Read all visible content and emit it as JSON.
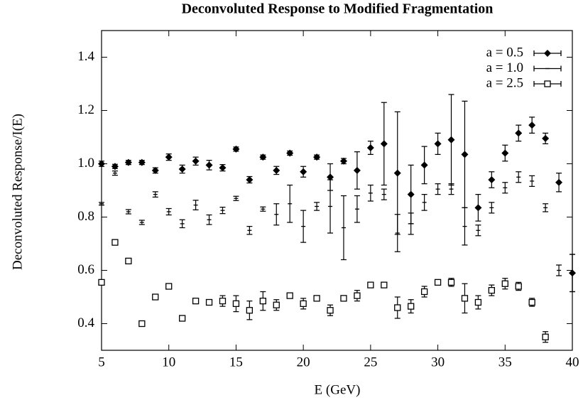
{
  "chart_data": {
    "type": "errorbar-scatter",
    "title": "Deconvoluted Response to Modified Fragmentation",
    "xlabel": "E (GeV)",
    "ylabel": "Deconvoluted Response/I(E)",
    "xlim": [
      5,
      40
    ],
    "ylim": [
      0.3,
      1.5
    ],
    "xticks": [
      5,
      10,
      15,
      20,
      25,
      30,
      35,
      40
    ],
    "yticks": [
      0.4,
      0.6,
      0.8,
      {
        "value": 1.0,
        "label": "1.0"
      },
      1.2,
      1.4
    ],
    "legend": "upper right",
    "series": [
      {
        "name": "a = 0.5",
        "color": "#000000",
        "marker": "diamond",
        "x": [
          5,
          6,
          7,
          8,
          9,
          10,
          11,
          12,
          13,
          14,
          15,
          16,
          17,
          18,
          19,
          20,
          21,
          22,
          23,
          24,
          25,
          26,
          27,
          28,
          29,
          30,
          31,
          32,
          33,
          34,
          35,
          36,
          37,
          38,
          39,
          40
        ],
        "values": [
          1.0,
          0.99,
          1.005,
          1.005,
          0.975,
          1.025,
          0.98,
          1.01,
          0.995,
          0.985,
          1.055,
          0.94,
          1.025,
          0.975,
          1.04,
          0.97,
          1.025,
          0.95,
          1.01,
          0.975,
          1.06,
          1.075,
          0.965,
          0.885,
          0.995,
          1.075,
          1.09,
          1.035,
          0.835,
          0.94,
          1.04,
          1.115,
          1.145,
          1.095,
          0.93,
          0.59
        ],
        "errors": [
          0.01,
          0.008,
          0.008,
          0.008,
          0.01,
          0.012,
          0.015,
          0.015,
          0.018,
          0.012,
          0.008,
          0.012,
          0.008,
          0.015,
          0.008,
          0.02,
          0.008,
          0.05,
          0.01,
          0.07,
          0.025,
          0.155,
          0.23,
          0.11,
          0.07,
          0.04,
          0.17,
          0.2,
          0.05,
          0.03,
          0.03,
          0.03,
          0.03,
          0.02,
          0.035,
          0.07
        ]
      },
      {
        "name": "a = 1.0",
        "color": "#000000",
        "marker": "plus",
        "x": [
          5,
          6,
          7,
          8,
          9,
          10,
          11,
          12,
          13,
          14,
          15,
          16,
          17,
          18,
          19,
          20,
          21,
          22,
          23,
          24,
          25,
          26,
          27,
          28,
          29,
          30,
          31,
          32,
          33,
          34,
          35,
          36,
          37,
          38,
          39,
          40
        ],
        "values": [
          0.85,
          0.965,
          0.82,
          0.78,
          0.885,
          0.82,
          0.775,
          0.845,
          0.79,
          0.825,
          0.87,
          0.75,
          0.83,
          0.81,
          0.85,
          0.765,
          0.84,
          0.84,
          0.76,
          0.83,
          0.89,
          0.885,
          0.74,
          0.775,
          0.855,
          0.905,
          0.905,
          0.765,
          0.75,
          0.835,
          0.91,
          0.95,
          0.935,
          0.835,
          0.6,
          0.59
        ],
        "errors": [
          0.005,
          0.008,
          0.008,
          0.008,
          0.01,
          0.012,
          0.015,
          0.018,
          0.018,
          0.012,
          0.008,
          0.015,
          0.008,
          0.04,
          0.07,
          0.06,
          0.015,
          0.1,
          0.12,
          0.05,
          0.03,
          0.02,
          0.07,
          0.04,
          0.03,
          0.02,
          0.02,
          0.07,
          0.02,
          0.02,
          0.02,
          0.02,
          0.02,
          0.015,
          0.02,
          0.07
        ]
      },
      {
        "name": "a = 2.5",
        "color": "#000000",
        "marker": "square",
        "x": [
          5,
          6,
          7,
          8,
          9,
          10,
          11,
          12,
          13,
          14,
          15,
          16,
          17,
          18,
          19,
          20,
          21,
          22,
          23,
          24,
          25,
          26,
          27,
          28,
          29,
          30,
          31,
          32,
          33,
          34,
          35,
          36,
          37,
          38
        ],
        "values": [
          0.555,
          0.705,
          0.635,
          0.4,
          0.5,
          0.54,
          0.42,
          0.485,
          0.48,
          0.485,
          0.475,
          0.45,
          0.485,
          0.47,
          0.505,
          0.475,
          0.495,
          0.45,
          0.495,
          0.505,
          0.545,
          0.545,
          0.46,
          0.465,
          0.52,
          0.555,
          0.555,
          0.495,
          0.48,
          0.525,
          0.55,
          0.54,
          0.48,
          0.35
        ],
        "errors": [
          0.008,
          0.008,
          0.008,
          0.008,
          0.008,
          0.008,
          0.008,
          0.008,
          0.01,
          0.02,
          0.03,
          0.035,
          0.035,
          0.02,
          0.01,
          0.02,
          0.01,
          0.02,
          0.008,
          0.02,
          0.01,
          0.008,
          0.04,
          0.025,
          0.02,
          0.01,
          0.015,
          0.055,
          0.025,
          0.02,
          0.02,
          0.015,
          0.015,
          0.02
        ]
      }
    ]
  }
}
